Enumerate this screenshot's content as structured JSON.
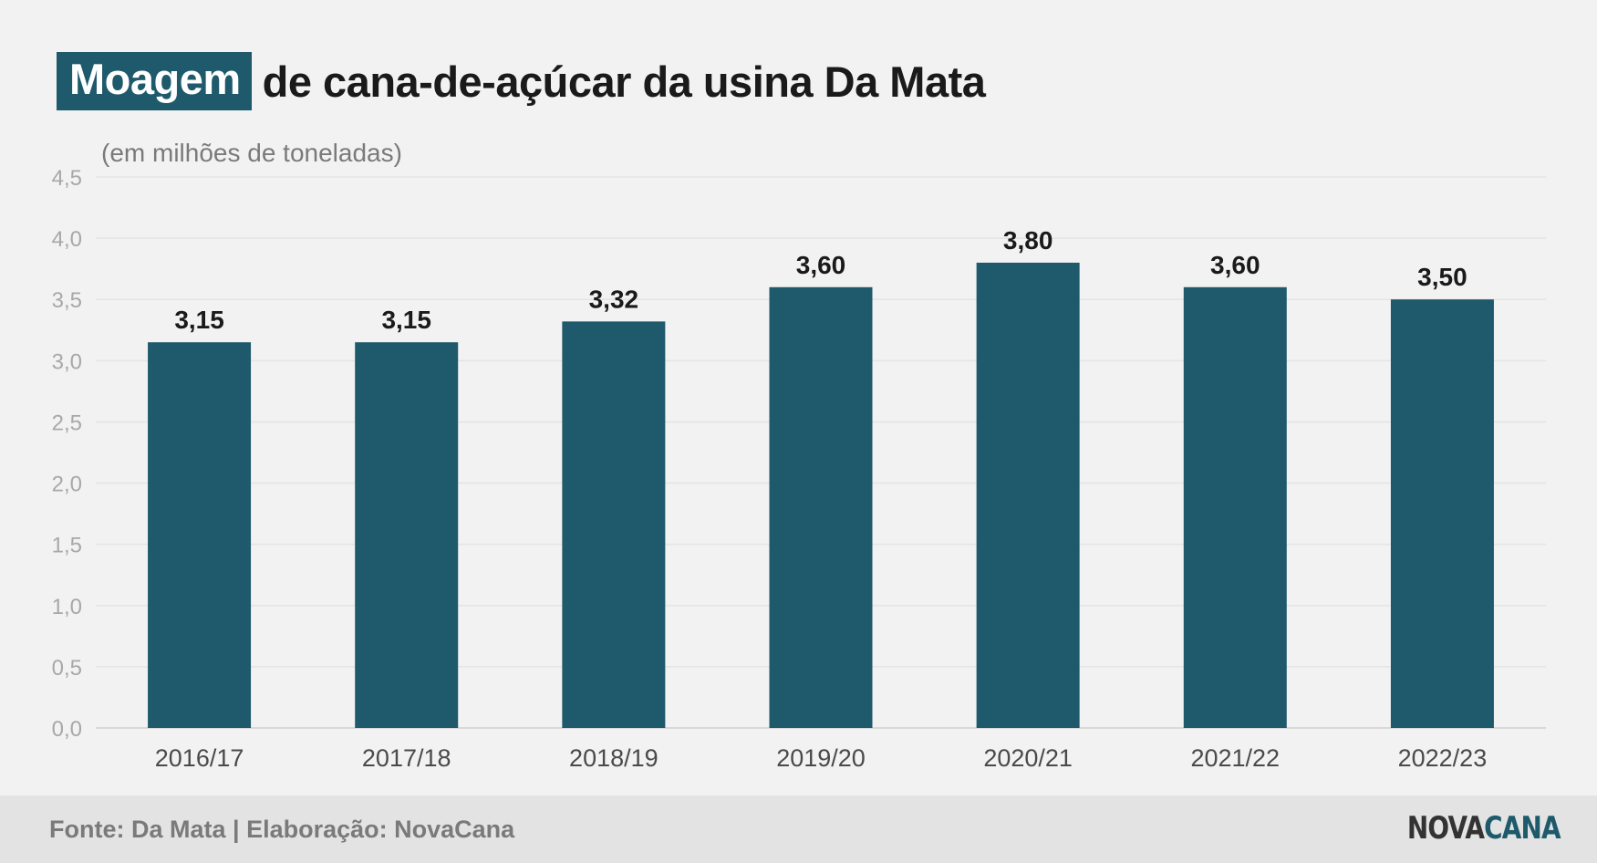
{
  "header": {
    "title_highlight": "Moagem",
    "title_rest": "de cana-de-açúcar da usina Da Mata",
    "subtitle": "(em milhões de toneladas)"
  },
  "footer": {
    "source": "Fonte: Da Mata | Elaboração: NovaCana",
    "logo_part1": "NOVA",
    "logo_part2": "CANA"
  },
  "colors": {
    "bar": "#1e5a6b",
    "highlight": "#1e5a6b",
    "background": "#f2f2f2",
    "footer_bg": "#e3e3e3"
  },
  "chart_data": {
    "type": "bar",
    "title": "Moagem de cana-de-açúcar da usina Da Mata",
    "ylabel": "(em milhões de toneladas)",
    "xlabel": "",
    "categories": [
      "2016/17",
      "2017/18",
      "2018/19",
      "2019/20",
      "2020/21",
      "2021/22",
      "2022/23"
    ],
    "values": [
      3.15,
      3.15,
      3.32,
      3.6,
      3.8,
      3.6,
      3.5
    ],
    "value_labels": [
      "3,15",
      "3,15",
      "3,32",
      "3,60",
      "3,80",
      "3,60",
      "3,50"
    ],
    "ylim": [
      0,
      4.5
    ],
    "yticks": [
      0,
      0.5,
      1.0,
      1.5,
      2.0,
      2.5,
      3.0,
      3.5,
      4.0,
      4.5
    ],
    "ytick_labels": [
      "0,0",
      "0,5",
      "1,0",
      "1,5",
      "2,0",
      "2,5",
      "3,0",
      "3,5",
      "4,0",
      "4,5"
    ],
    "grid": true,
    "legend": "none"
  }
}
